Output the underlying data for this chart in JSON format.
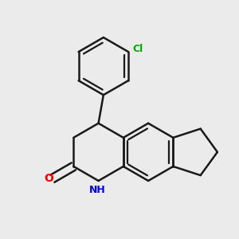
{
  "background_color": "#ebebeb",
  "bond_color": "#1a1a1a",
  "atom_colors": {
    "O": "#ff0000",
    "N": "#0000ff",
    "Cl": "#00aa00"
  },
  "bond_width": 1.8,
  "dbo": 0.055,
  "figsize": [
    3.0,
    3.0
  ],
  "dpi": 100
}
